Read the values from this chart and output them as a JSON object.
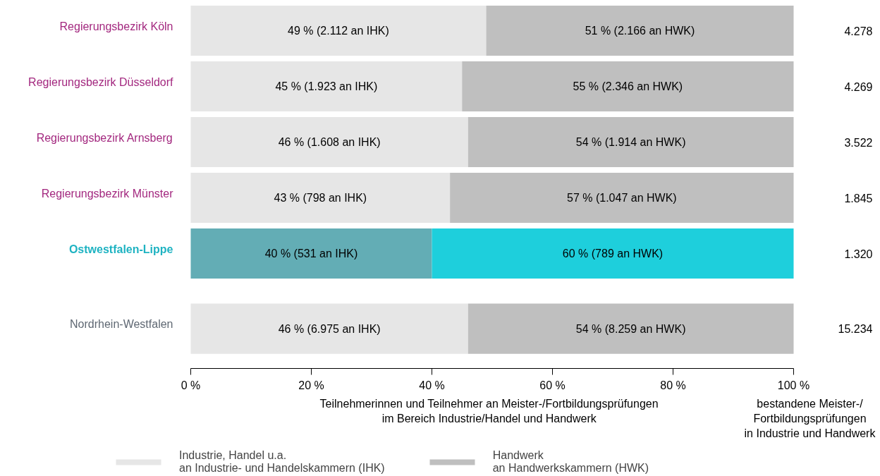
{
  "chart_data": {
    "type": "bar",
    "orientation": "horizontal",
    "stacked": true,
    "categories": [
      "Regierungsbezirk Köln",
      "Regierungsbezirk Düsseldorf",
      "Regierungsbezirk Arnsberg",
      "Regierungsbezirk Münster",
      "Ostwestfalen-Lippe",
      "Nordrhein-Westfalen"
    ],
    "series": [
      {
        "name": "Industrie, Handel u.a.\nan Industrie- und Handelskammern (IHK)",
        "color": "#e6e6e6",
        "colors": [
          "#e6e6e6",
          "#e6e6e6",
          "#e6e6e6",
          "#e6e6e6",
          "#63adb5",
          "#e6e6e6"
        ],
        "values": [
          49,
          45,
          46,
          43,
          40,
          46
        ],
        "value_labels": [
          "49 % (2.112 an IHK)",
          "45 % (1.923 an IHK)",
          "46 % (1.608 an IHK)",
          "43 % (798 an IHK)",
          "40 % (531 an IHK)",
          "46 % (6.975 an IHK)"
        ]
      },
      {
        "name": "Handwerk\nan Handwerkskammern (HWK)",
        "color": "#bfbfbf",
        "colors": [
          "#bfbfbf",
          "#bfbfbf",
          "#bfbfbf",
          "#bfbfbf",
          "#1ecfdc",
          "#bfbfbf"
        ],
        "values": [
          51,
          55,
          54,
          57,
          60,
          54
        ],
        "value_labels": [
          "51 % (2.166 an HWK)",
          "55 % (2.346 an HWK)",
          "54 % (1.914 an HWK)",
          "57 % (1.047 an HWK)",
          "60 % (789 an HWK)",
          "54 % (8.259 an HWK)"
        ]
      }
    ],
    "xlabel": "Teilnehmerinnen und Teilnehmer an Meister-/Fortbildungsprüfungen\nim Bereich Industrie/Handel und Handwerk",
    "annotations": [
      "bestandene Meister-/\nFortbildungsprüfungen\nin Industrie und Handwerk",
      "4.278",
      "4.269",
      "3.522",
      "1.845",
      "1.320",
      "15.234"
    ],
    "xlim": [
      0,
      100
    ],
    "xticks": [
      {
        "value": 0,
        "label": "0 %"
      },
      {
        "value": 20,
        "label": "20 %"
      },
      {
        "value": 40,
        "label": "40 %"
      },
      {
        "value": 60,
        "label": "60 %"
      },
      {
        "value": 80,
        "label": "80 %"
      },
      {
        "value": 100,
        "label": "100 %"
      }
    ],
    "grid": false,
    "legend": "bottom"
  }
}
